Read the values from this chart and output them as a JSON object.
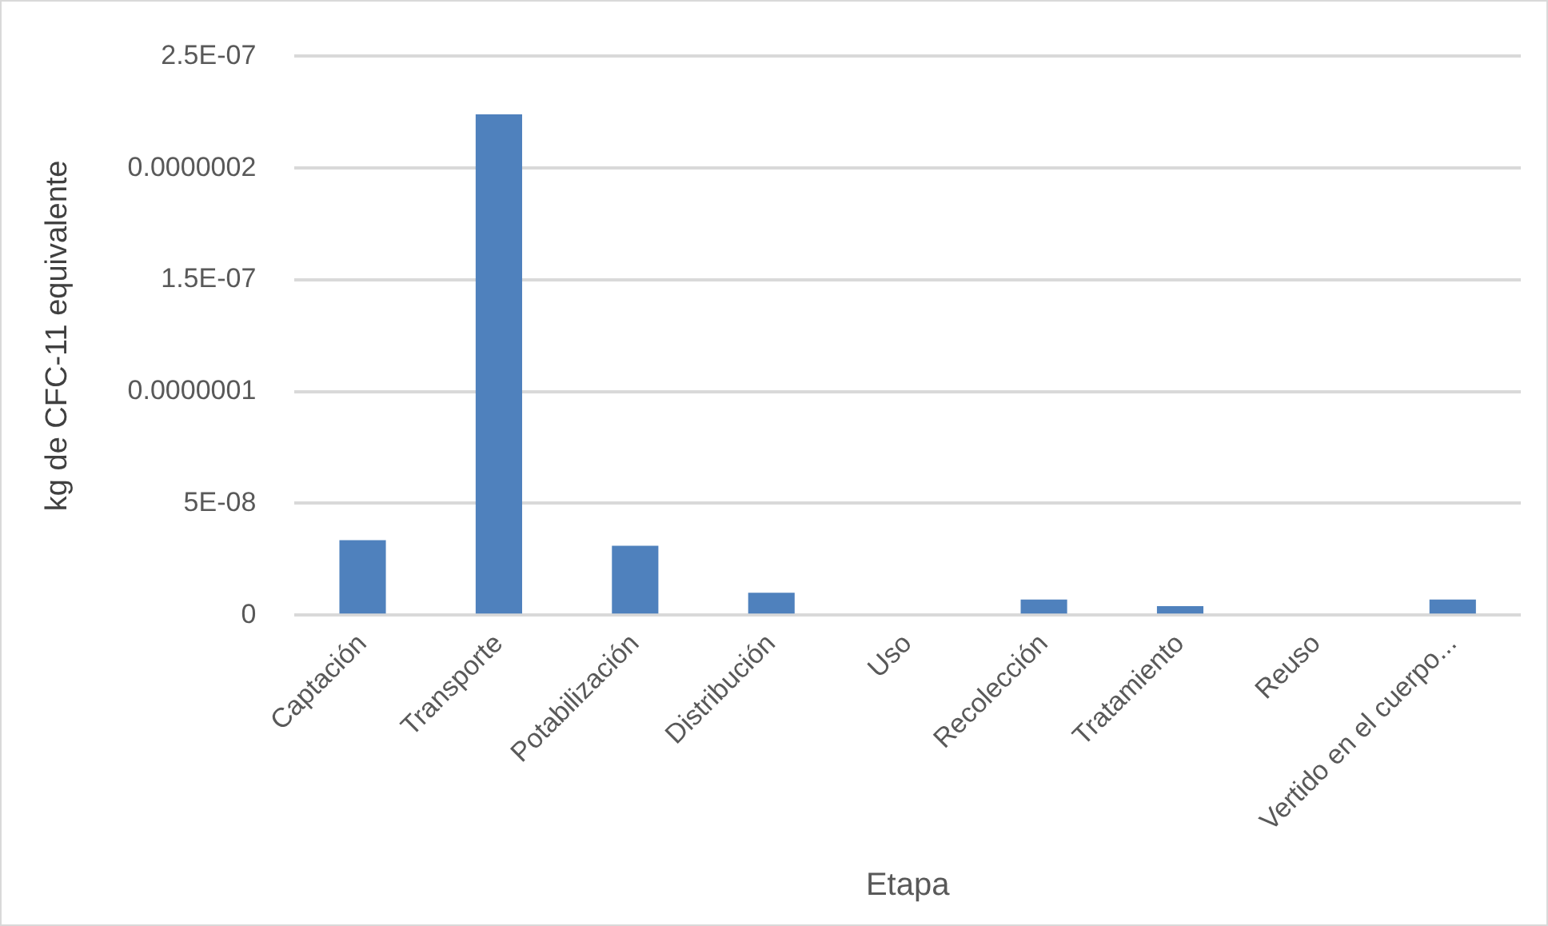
{
  "chart_data": {
    "type": "bar",
    "xlabel": "Etapa",
    "ylabel": "kg de CFC-11 equivalente",
    "categories": [
      "Captación",
      "Transporte",
      "Potabilización",
      "Distribución",
      "Uso",
      "Recolección",
      "Tratamiento",
      "Reuso",
      "Vertido en el cuerpo..."
    ],
    "values": [
      3.35e-08,
      2.24e-07,
      3.1e-08,
      1e-08,
      0,
      7e-09,
      4e-09,
      0,
      7e-09
    ],
    "color": "#4f81bd",
    "ylim": [
      0,
      2.5e-07
    ],
    "yticks": [
      0,
      {
        "value": 5e-08,
        "label": "5E-08"
      },
      {
        "value": 1e-07,
        "label": "0.0000001"
      },
      {
        "value": 1.5e-07,
        "label": "1.5E-07"
      },
      {
        "value": 2e-07,
        "label": "0.0000002"
      },
      {
        "value": 2.5e-07,
        "label": "2.5E-07"
      }
    ],
    "grid": "y",
    "legend": false
  }
}
